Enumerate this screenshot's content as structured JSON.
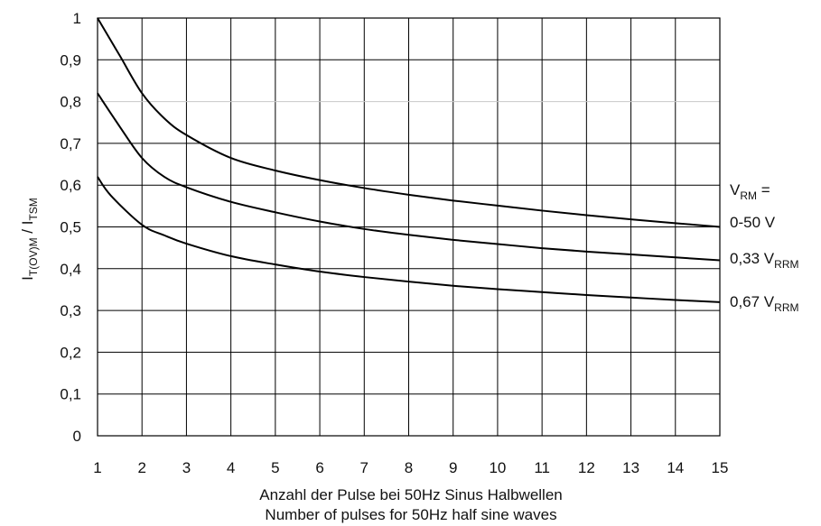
{
  "chart_data": {
    "type": "line",
    "xlabel_lines": [
      "Anzahl der Pulse bei 50Hz Sinus Halbwellen",
      "Number of pulses for 50Hz half sine waves"
    ],
    "ylabel": {
      "main": "I",
      "sub1": "T(OV)M",
      "sep": " / I",
      "sub2": "TSM"
    },
    "x_ticks": [
      "1",
      "2",
      "3",
      "4",
      "5",
      "6",
      "7",
      "8",
      "9",
      "10",
      "11",
      "12",
      "13",
      "14",
      "15"
    ],
    "y_ticks": [
      "0",
      "0,1",
      "0,2",
      "0,3",
      "0,4",
      "0,5",
      "0,6",
      "0,7",
      "0,8",
      "0,9",
      "1"
    ],
    "xlim": [
      1,
      15
    ],
    "ylim": [
      0,
      1
    ],
    "grid": true,
    "legend_header": {
      "main": "V",
      "sub": "RM",
      "suffix": " ="
    },
    "series": [
      {
        "label_main": "0-50 V",
        "label_sub": "",
        "x": [
          1,
          1.5,
          2,
          2.5,
          3,
          4,
          5,
          6,
          7,
          8,
          9,
          10,
          11,
          12,
          13,
          14,
          15
        ],
        "y": [
          1.0,
          0.91,
          0.82,
          0.76,
          0.72,
          0.665,
          0.635,
          0.612,
          0.593,
          0.577,
          0.563,
          0.551,
          0.539,
          0.528,
          0.518,
          0.509,
          0.5
        ]
      },
      {
        "label_main": "0,33 V",
        "label_sub": "RRM",
        "x": [
          1,
          1.5,
          2,
          2.5,
          3,
          4,
          5,
          6,
          7,
          8,
          9,
          10,
          11,
          12,
          13,
          14,
          15
        ],
        "y": [
          0.82,
          0.74,
          0.665,
          0.62,
          0.595,
          0.56,
          0.535,
          0.513,
          0.495,
          0.481,
          0.469,
          0.459,
          0.449,
          0.441,
          0.434,
          0.427,
          0.42
        ]
      },
      {
        "label_main": "0,67 V",
        "label_sub": "RRM",
        "x": [
          1,
          1.3,
          2,
          2.5,
          3,
          4,
          5,
          6,
          7,
          8,
          9,
          10,
          11,
          12,
          13,
          14,
          15
        ],
        "y": [
          0.62,
          0.575,
          0.505,
          0.48,
          0.46,
          0.43,
          0.41,
          0.393,
          0.38,
          0.369,
          0.359,
          0.351,
          0.344,
          0.337,
          0.331,
          0.325,
          0.32
        ]
      }
    ]
  }
}
